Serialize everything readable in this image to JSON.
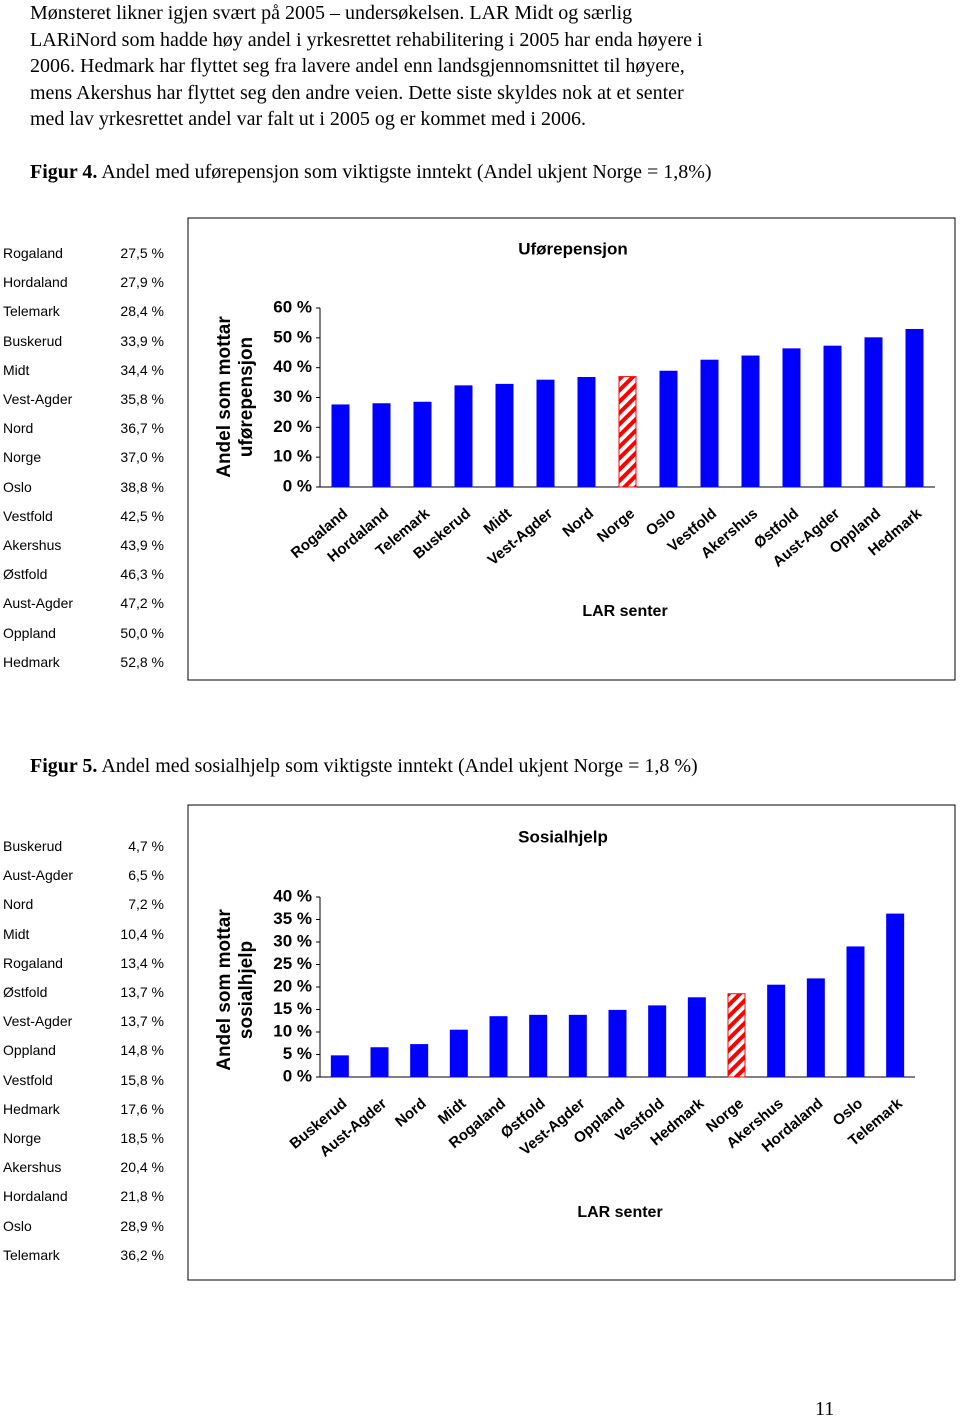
{
  "paragraph": [
    "Mønsteret likner igjen svært på 2005 – undersøkelsen.  LAR Midt og særlig",
    "LARiNord som hadde høy andel i yrkesrettet rehabilitering i 2005 har enda høyere i",
    "2006. Hedmark har flyttet seg fra lavere andel enn landsgjennomsnittet til høyere,",
    "mens Akershus har flyttet seg den andre veien.  Dette siste skyldes nok at et senter",
    "med lav yrkesrettet andel var falt ut i 2005 og er kommet med i 2006."
  ],
  "figures": [
    {
      "label": "Figur 4.",
      "caption": "Andel med uførepensjon som viktigste inntekt (Andel ukjent Norge = 1,8%)",
      "table": [
        [
          "Rogaland",
          "27,5 %"
        ],
        [
          "Hordaland",
          "27,9 %"
        ],
        [
          "Telemark",
          "28,4 %"
        ],
        [
          "Buskerud",
          "33,9 %"
        ],
        [
          "Midt",
          "34,4 %"
        ],
        [
          "Vest-Agder",
          "35,8 %"
        ],
        [
          "Nord",
          "36,7 %"
        ],
        [
          "Norge",
          "37,0 %"
        ],
        [
          "Oslo",
          "38,8 %"
        ],
        [
          "Vestfold",
          "42,5 %"
        ],
        [
          "Akershus",
          "43,9 %"
        ],
        [
          "Østfold",
          "46,3 %"
        ],
        [
          "Aust-Agder",
          "47,2 %"
        ],
        [
          "Oppland",
          "50,0 %"
        ],
        [
          "Hedmark",
          "52,8 %"
        ]
      ],
      "chart": {
        "type": "bar",
        "title": "Uførepensjon",
        "y_label": [
          "Andel som mottar",
          "uførepensjon"
        ],
        "x_label": "LAR senter",
        "categories": [
          "Rogaland",
          "Hordaland",
          "Telemark",
          "Buskerud",
          "Midt",
          "Vest-Agder",
          "Nord",
          "Norge",
          "Oslo",
          "Vestfold",
          "Akershus",
          "Østfold",
          "Aust-Agder",
          "Oppland",
          "Hedmark"
        ],
        "values": [
          27.5,
          27.9,
          28.4,
          33.9,
          34.4,
          35.8,
          36.7,
          37.0,
          38.8,
          42.5,
          43.9,
          46.3,
          47.2,
          50.0,
          52.8
        ],
        "color": "#0000ff",
        "highlight": "Norge",
        "highlight_color": "#ff0000",
        "ylim": [
          0,
          60
        ],
        "yticks": [
          {
            "value": 0,
            "label": "0 %"
          },
          {
            "value": 10,
            "label": "10 %"
          },
          {
            "value": 20,
            "label": "20 %"
          },
          {
            "value": 30,
            "label": "30 %"
          },
          {
            "value": 40,
            "label": "40 %"
          },
          {
            "value": 50,
            "label": "50 %"
          },
          {
            "value": 60,
            "label": "60 %"
          }
        ]
      }
    },
    {
      "label": "Figur 5.",
      "caption": "Andel med sosialhjelp som viktigste inntekt (Andel ukjent Norge = 1,8 %)",
      "table": [
        [
          "Buskerud",
          "4,7 %"
        ],
        [
          "Aust-Agder",
          "6,5 %"
        ],
        [
          "Nord",
          "7,2 %"
        ],
        [
          "Midt",
          "10,4 %"
        ],
        [
          "Rogaland",
          "13,4 %"
        ],
        [
          "Østfold",
          "13,7 %"
        ],
        [
          "Vest-Agder",
          "13,7 %"
        ],
        [
          "Oppland",
          "14,8 %"
        ],
        [
          "Vestfold",
          "15,8 %"
        ],
        [
          "Hedmark",
          "17,6 %"
        ],
        [
          "Norge",
          "18,5 %"
        ],
        [
          "Akershus",
          "20,4 %"
        ],
        [
          "Hordaland",
          "21,8 %"
        ],
        [
          "Oslo",
          "28,9 %"
        ],
        [
          "Telemark",
          "36,2 %"
        ]
      ],
      "chart": {
        "type": "bar",
        "title": "Sosialhjelp",
        "y_label": [
          "Andel som mottar",
          "sosialhjelp"
        ],
        "x_label": "LAR senter",
        "categories": [
          "Buskerud",
          "Aust-Agder",
          "Nord",
          "Midt",
          "Rogaland",
          "Østfold",
          "Vest-Agder",
          "Oppland",
          "Vestfold",
          "Hedmark",
          "Norge",
          "Akershus",
          "Hordaland",
          "Oslo",
          "Telemark"
        ],
        "values": [
          4.7,
          6.5,
          7.2,
          10.4,
          13.4,
          13.7,
          13.7,
          14.8,
          15.8,
          17.6,
          18.5,
          20.4,
          21.8,
          28.9,
          36.2
        ],
        "color": "#0000ff",
        "highlight": "Norge",
        "highlight_color": "#ff0000",
        "ylim": [
          0,
          40
        ],
        "yticks": [
          {
            "value": 0,
            "label": "0 %"
          },
          {
            "value": 5,
            "label": "5 %"
          },
          {
            "value": 10,
            "label": "10 %"
          },
          {
            "value": 15,
            "label": "15 %"
          },
          {
            "value": 20,
            "label": "20 %"
          },
          {
            "value": 25,
            "label": "25 %"
          },
          {
            "value": 30,
            "label": "30 %"
          },
          {
            "value": 35,
            "label": "35 %"
          },
          {
            "value": 40,
            "label": "40 %"
          }
        ]
      }
    }
  ],
  "page_number": "11"
}
